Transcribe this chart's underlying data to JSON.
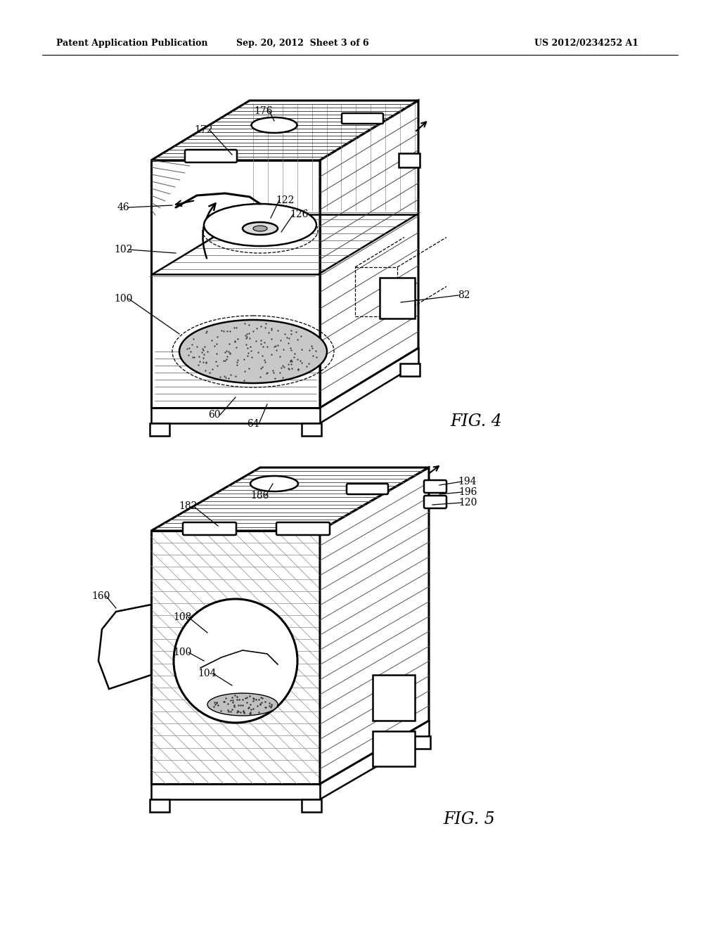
{
  "bg_color": "#ffffff",
  "line_color": "#000000",
  "header_left": "Patent Application Publication",
  "header_center": "Sep. 20, 2012  Sheet 3 of 6",
  "header_right": "US 2012/0234252 A1",
  "fig4_label": "FIG. 4",
  "fig5_label": "FIG. 5"
}
